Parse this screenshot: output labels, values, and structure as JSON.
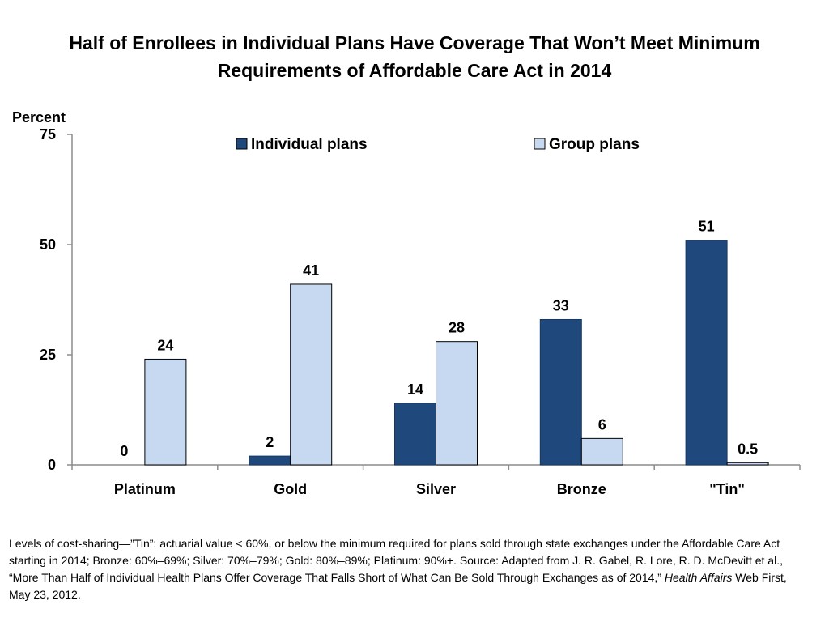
{
  "title": {
    "line1": "Half of Enrollees in Individual Plans Have Coverage That Won’t Meet Minimum",
    "line2": "Requirements of Affordable Care Act in 2014"
  },
  "footnote": {
    "text": "Levels of cost-sharing—”Tin”: actuarial value < 60%, or below the minimum required for plans sold through state exchanges under the Affordable Care Act starting in 2014; Bronze: 60%–69%; Silver: 70%–79%; Gold: 80%–89%; Platinum: 90%+. Source: Adapted from J. R. Gabel, R. Lore, R. D. McDevitt et al., “More Than Half of Individual Health Plans Offer Coverage That Falls Short of What Can Be Sold Through Exchanges as of 2014,” ",
    "italic": "Health Affairs",
    "tail": " Web First, May 23, 2012."
  },
  "chart_data": {
    "type": "bar",
    "ylabel": "Percent",
    "ylim": [
      0,
      75
    ],
    "yticks": [
      0,
      25,
      50,
      75
    ],
    "grid": false,
    "legend_position": "top",
    "categories": [
      "Platinum",
      "Gold",
      "Silver",
      "Bronze",
      "\"Tin\""
    ],
    "series": [
      {
        "name": "Individual plans",
        "color": "#1f497d",
        "values": [
          0,
          2,
          14,
          33,
          51
        ],
        "labels": [
          "0",
          "2",
          "14",
          "33",
          "51"
        ]
      },
      {
        "name": "Group plans",
        "color": "#c6d9f1",
        "values": [
          24,
          41,
          28,
          6,
          0.5
        ],
        "labels": [
          "24",
          "41",
          "28",
          "6",
          "0.5"
        ]
      }
    ]
  }
}
